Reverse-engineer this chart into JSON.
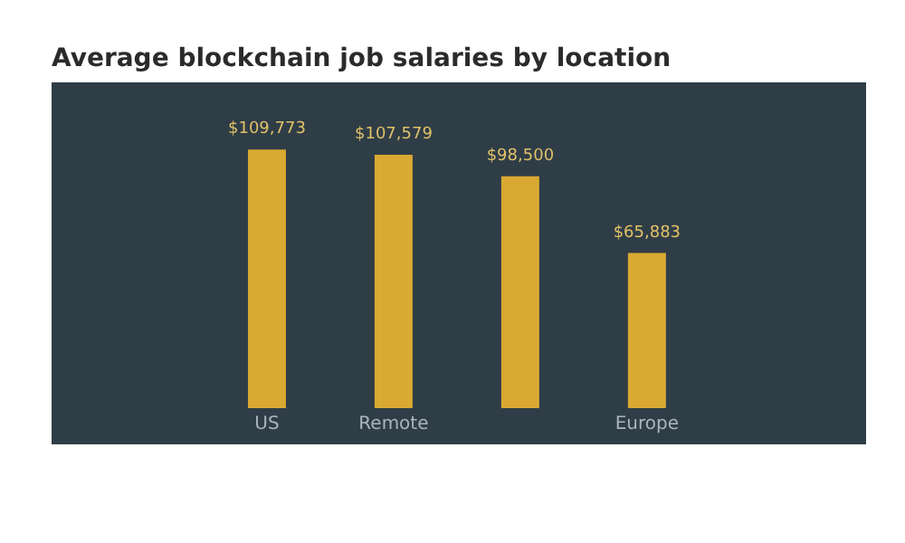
{
  "chart_data": {
    "type": "bar",
    "title": "Average blockchain job salaries by location",
    "categories": [
      "US",
      "Remote",
      null,
      "Europe"
    ],
    "values": [
      109773,
      107579,
      98500,
      65883
    ],
    "value_labels": [
      "$109,773",
      "$107,579",
      "$98,500",
      "$65,883"
    ],
    "color": "#d9a932",
    "grid": false
  }
}
